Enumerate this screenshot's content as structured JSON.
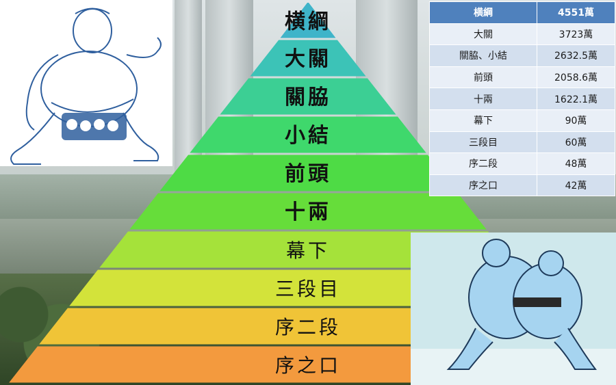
{
  "pyramid": {
    "levels": [
      {
        "label": "横綱",
        "color": "#3fb4c9"
      },
      {
        "label": "大關",
        "color": "#3cc3b7"
      },
      {
        "label": "關脇",
        "color": "#3ccf94"
      },
      {
        "label": "小結",
        "color": "#3fd86c"
      },
      {
        "label": "前頭",
        "color": "#4edb45"
      },
      {
        "label": "十兩",
        "color": "#66dd3a"
      },
      {
        "label": "幕下",
        "color": "#a5e23a"
      },
      {
        "label": "三段目",
        "color": "#d3e33a"
      },
      {
        "label": "序二段",
        "color": "#f0c437"
      },
      {
        "label": "序之口",
        "color": "#f39a3e"
      }
    ]
  },
  "salary_table": {
    "header": [
      "横綱",
      "4551萬"
    ],
    "rows": [
      [
        "大關",
        "3723萬"
      ],
      [
        "關脇、小結",
        "2632.5萬"
      ],
      [
        "前頭",
        "2058.6萬"
      ],
      [
        "十兩",
        "1622.1萬"
      ],
      [
        "幕下",
        "90萬"
      ],
      [
        "三段目",
        "60萬"
      ],
      [
        "序二段",
        "48萬"
      ],
      [
        "序之口",
        "42萬"
      ]
    ]
  }
}
